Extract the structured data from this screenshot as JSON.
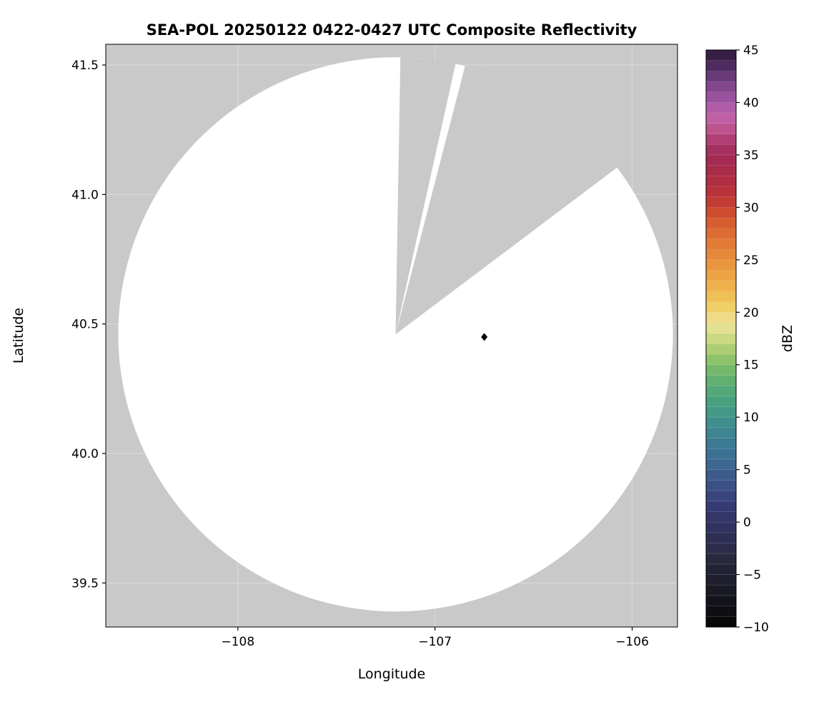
{
  "figure": {
    "background_color": "#ffffff"
  },
  "chart_data": {
    "type": "heatmap",
    "title": "SEA-POL 20250122 0422-0427 UTC Composite Reflectivity",
    "xlabel": "Longitude",
    "ylabel": "Latitude",
    "xlim": [
      -108.67,
      -105.77
    ],
    "ylim": [
      39.33,
      41.58
    ],
    "xticks": [
      -108,
      -107,
      -106
    ],
    "xtick_labels": [
      "−108",
      "−107",
      "−106"
    ],
    "yticks": [
      39.5,
      40.0,
      40.5,
      41.0,
      41.5
    ],
    "ytick_labels": [
      "39.5",
      "40.0",
      "40.5",
      "41.0",
      "41.5"
    ],
    "plot_bg_color": "#c9c9c9",
    "grid_color": "#ffffff",
    "radar_coverage": {
      "center_lon": -107.2,
      "center_lat": 40.46,
      "radius_deg_lat": 1.07,
      "fill_color": "#ffffff",
      "blocked_sectors_azimuth_deg": [
        [
          1,
          12.5
        ],
        [
          14.5,
          53
        ]
      ]
    },
    "marker": {
      "lon": -106.75,
      "lat": 40.45,
      "shape": "diamond",
      "color": "#000000"
    },
    "colorbar": {
      "label": "dBZ",
      "vmin": -10,
      "vmax": 45,
      "ticks": [
        45,
        40,
        35,
        30,
        25,
        20,
        15,
        10,
        5,
        0,
        -5,
        -10
      ],
      "tick_labels": [
        "45",
        "40",
        "35",
        "30",
        "25",
        "20",
        "15",
        "10",
        "5",
        "0",
        "−5",
        "−10"
      ],
      "stops": [
        [
          -10,
          "#060606"
        ],
        [
          -7,
          "#16161f"
        ],
        [
          -5,
          "#202031"
        ],
        [
          -3,
          "#2a2a44"
        ],
        [
          -1,
          "#30305a"
        ],
        [
          1,
          "#35376e"
        ],
        [
          3,
          "#3a4a80"
        ],
        [
          5,
          "#3d618f"
        ],
        [
          7,
          "#3d7695"
        ],
        [
          9,
          "#3e8a90"
        ],
        [
          11,
          "#449c83"
        ],
        [
          13,
          "#58ab74"
        ],
        [
          15,
          "#7fbc69"
        ],
        [
          16,
          "#9cc86c"
        ],
        [
          17,
          "#bcd478"
        ],
        [
          18,
          "#d9df87"
        ],
        [
          19,
          "#eee09a"
        ],
        [
          20,
          "#f0d673"
        ],
        [
          21,
          "#efc75b"
        ],
        [
          23,
          "#eda948"
        ],
        [
          25,
          "#e88f3c"
        ],
        [
          27,
          "#e07434"
        ],
        [
          29,
          "#d3552f"
        ],
        [
          30,
          "#c84331"
        ],
        [
          31,
          "#bd3536"
        ],
        [
          33,
          "#ac2b44"
        ],
        [
          35,
          "#a02b55"
        ],
        [
          36,
          "#a83568"
        ],
        [
          37,
          "#b5497f"
        ],
        [
          38,
          "#c25f9c"
        ],
        [
          39,
          "#bb60ab"
        ],
        [
          40,
          "#a557a5"
        ],
        [
          41,
          "#8e4d97"
        ],
        [
          42,
          "#754183"
        ],
        [
          43,
          "#5b336c"
        ],
        [
          44,
          "#422452"
        ],
        [
          45,
          "#2b1737"
        ]
      ]
    }
  }
}
